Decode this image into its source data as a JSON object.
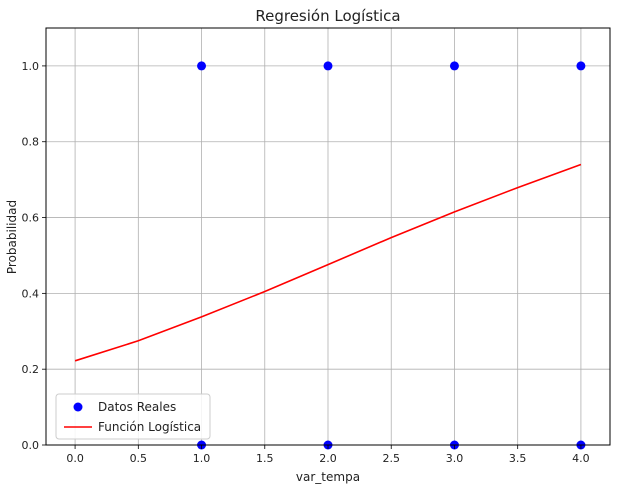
{
  "chart_data": {
    "type": "scatter",
    "title": "Regresión Logística",
    "xlabel": "var_tempa",
    "ylabel": "Probabilidad",
    "xlim": [
      -0.23,
      4.23
    ],
    "ylim": [
      0.0,
      1.1
    ],
    "xticks": [
      0.0,
      0.5,
      1.0,
      1.5,
      2.0,
      2.5,
      3.0,
      3.5,
      4.0
    ],
    "xtick_labels": [
      "0.0",
      "0.5",
      "1.0",
      "1.5",
      "2.0",
      "2.5",
      "3.0",
      "3.5",
      "4.0"
    ],
    "yticks": [
      0.0,
      0.2,
      0.4,
      0.6,
      0.8,
      1.0
    ],
    "ytick_labels": [
      "0.0",
      "0.2",
      "0.4",
      "0.6",
      "0.8",
      "1.0"
    ],
    "grid": true,
    "legend_position": "lower-left",
    "series": [
      {
        "name": "Datos Reales",
        "kind": "scatter",
        "color": "#0000ff",
        "x": [
          1.0,
          1.0,
          2.0,
          2.0,
          3.0,
          3.0,
          4.0,
          4.0
        ],
        "y": [
          1.0,
          0.0,
          1.0,
          0.0,
          1.0,
          0.0,
          1.0,
          0.0
        ]
      },
      {
        "name": "Función Logística",
        "kind": "line",
        "color": "#ff0000",
        "x": [
          0.0,
          0.5,
          1.0,
          1.5,
          2.0,
          2.5,
          3.0,
          3.5,
          4.0
        ],
        "y": [
          0.222,
          0.275,
          0.338,
          0.405,
          0.476,
          0.547,
          0.615,
          0.679,
          0.74
        ]
      }
    ]
  }
}
